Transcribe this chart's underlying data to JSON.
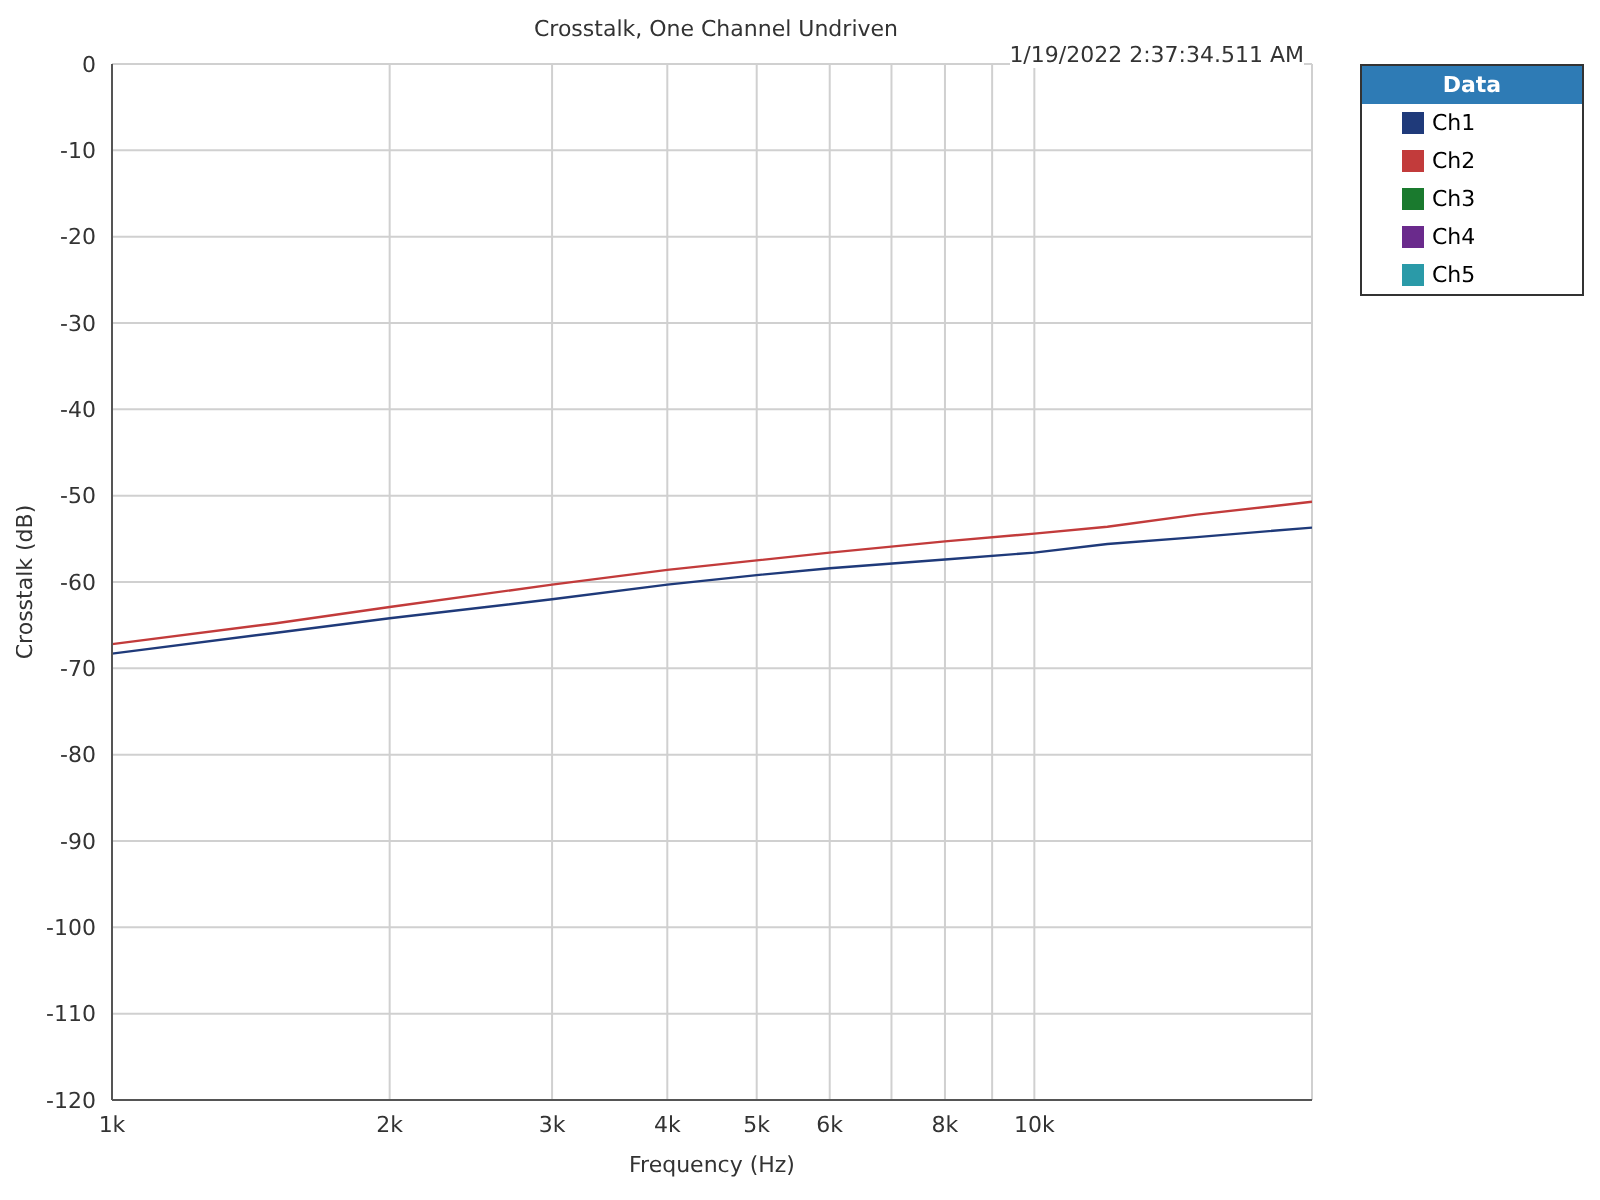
{
  "chart_data": {
    "type": "line",
    "title": "Crosstalk, One Channel Undriven",
    "xlabel": "Frequency (Hz)",
    "ylabel": "Crosstalk (dB)",
    "legend_title": "Data",
    "annotations": [
      "1/19/2022 2:37:34.511 AM"
    ],
    "x": [
      1000,
      1500,
      2000,
      3000,
      4000,
      5000,
      6000,
      8000,
      10000,
      12000,
      15000,
      20000
    ],
    "series": [
      {
        "name": "Ch1",
        "color": "#1f3a7a",
        "values": [
          -68.3,
          -65.9,
          -64.2,
          -62.0,
          -60.3,
          -59.2,
          -58.4,
          -57.4,
          -56.6,
          -55.6,
          -54.8,
          -53.7
        ]
      },
      {
        "name": "Ch2",
        "color": "#c23b3b",
        "values": [
          -67.2,
          -64.8,
          -62.9,
          -60.3,
          -58.6,
          -57.5,
          -56.6,
          -55.3,
          -54.4,
          -53.6,
          -52.2,
          -50.7
        ]
      },
      {
        "name": "Ch3",
        "color": "#1a7a2e",
        "values": [
          null,
          null,
          null,
          null,
          null,
          null,
          null,
          null,
          null,
          null,
          null,
          null
        ]
      },
      {
        "name": "Ch4",
        "color": "#6a2a8c",
        "values": [
          null,
          null,
          null,
          null,
          null,
          null,
          null,
          null,
          null,
          null,
          null,
          null
        ]
      },
      {
        "name": "Ch5",
        "color": "#2a9aa8",
        "values": [
          null,
          null,
          null,
          null,
          null,
          null,
          null,
          null,
          null,
          null,
          null,
          null
        ]
      }
    ],
    "log": "x",
    "xlim": [
      1000,
      20000
    ],
    "xticks": [
      {
        "value": 1000,
        "label": "1k"
      },
      {
        "value": 2000,
        "label": "2k"
      },
      {
        "value": 3000,
        "label": "3k"
      },
      {
        "value": 4000,
        "label": "4k"
      },
      {
        "value": 5000,
        "label": "5k"
      },
      {
        "value": 6000,
        "label": "6k"
      },
      {
        "value": 7000,
        "label": null
      },
      {
        "value": 8000,
        "label": "8k"
      },
      {
        "value": 9000,
        "label": null
      },
      {
        "value": 10000,
        "label": "10k"
      },
      {
        "value": 20000,
        "label": null
      }
    ],
    "ylim": [
      -120,
      0
    ],
    "yticks": [
      -120,
      -110,
      -100,
      -90,
      -80,
      -70,
      -60,
      -50,
      -40,
      -30,
      -20,
      -10,
      0
    ],
    "grid": true,
    "legend": "top right",
    "marker": "none",
    "line_style": "solid"
  }
}
